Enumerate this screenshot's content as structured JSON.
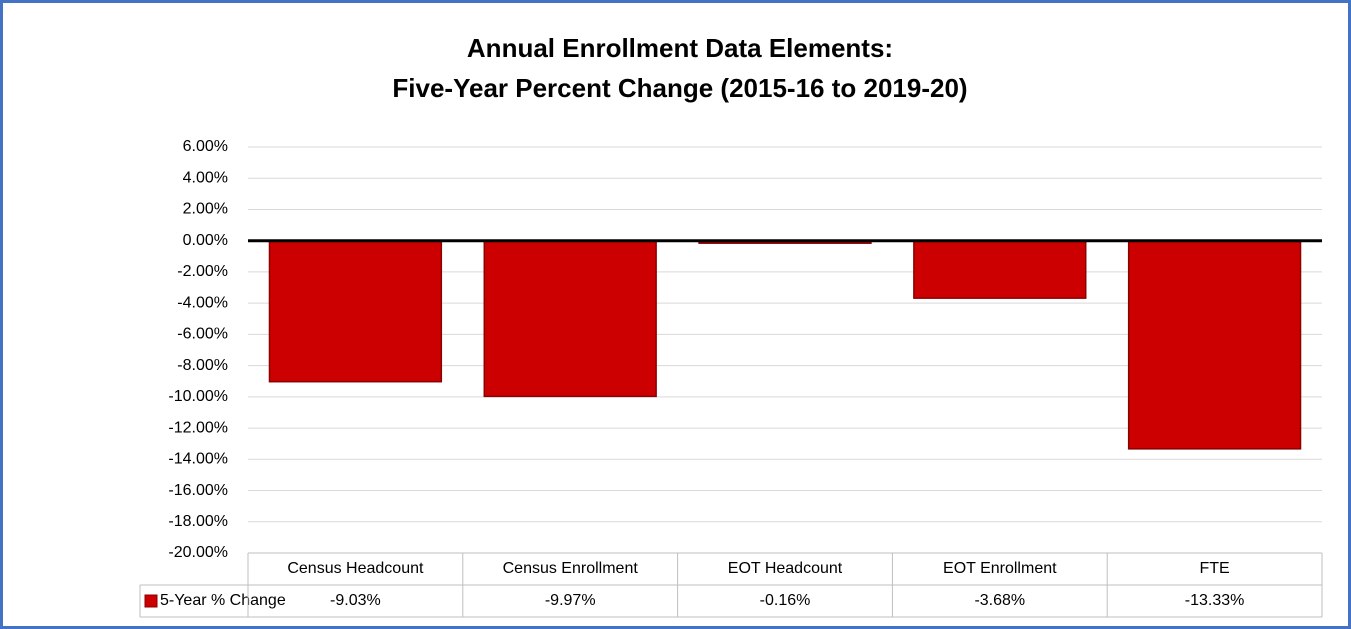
{
  "chart_data": {
    "type": "bar",
    "title": [
      "Annual Enrollment Data Elements:",
      "Five-Year Percent Change (2015-16 to 2019-20)"
    ],
    "categories": [
      "Census Headcount",
      "Census Enrollment",
      "EOT Headcount",
      "EOT Enrollment",
      "FTE"
    ],
    "series": [
      {
        "name": "5-Year % Change",
        "color": "#cc0000",
        "values": [
          -9.03,
          -9.97,
          -0.16,
          -3.68,
          -13.33
        ],
        "value_labels": [
          "-9.03%",
          "-9.97%",
          "-0.16%",
          "-3.68%",
          "-13.33%"
        ]
      }
    ],
    "ylim": [
      -20,
      6
    ],
    "yticks": [
      {
        "value": 6,
        "label": "6.00%"
      },
      {
        "value": 4,
        "label": "4.00%"
      },
      {
        "value": 2,
        "label": "2.00%"
      },
      {
        "value": 0,
        "label": "0.00%"
      },
      {
        "value": -2,
        "label": "-2.00%"
      },
      {
        "value": -4,
        "label": "-4.00%"
      },
      {
        "value": -6,
        "label": "-6.00%"
      },
      {
        "value": -8,
        "label": "-8.00%"
      },
      {
        "value": -10,
        "label": "-10.00%"
      },
      {
        "value": -12,
        "label": "-12.00%"
      },
      {
        "value": -14,
        "label": "-14.00%"
      },
      {
        "value": -16,
        "label": "-16.00%"
      },
      {
        "value": -18,
        "label": "-18.00%"
      },
      {
        "value": -20,
        "label": "-20.00%"
      }
    ],
    "grid": true
  }
}
